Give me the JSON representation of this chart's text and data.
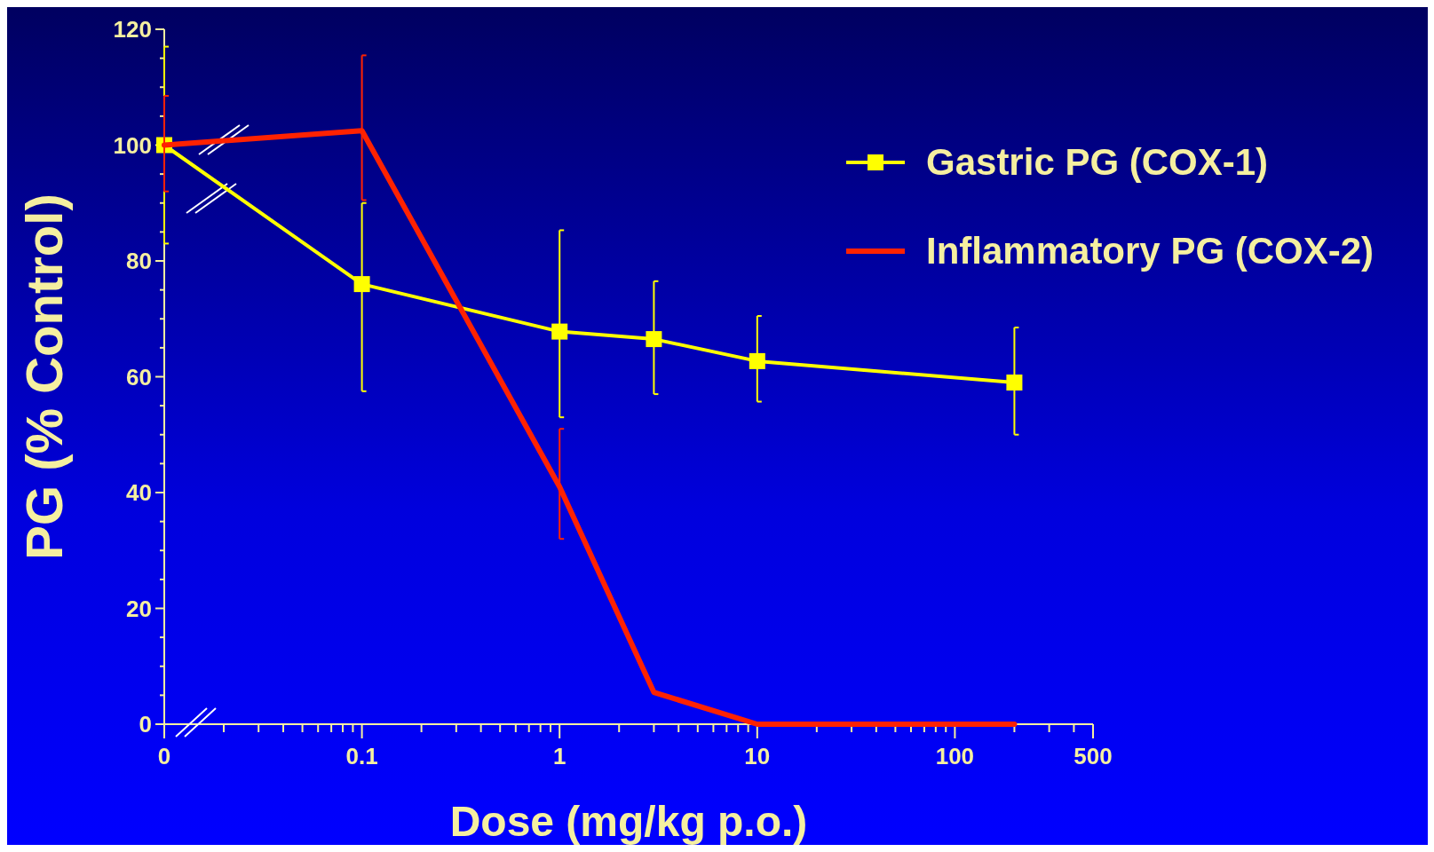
{
  "chart_data": {
    "type": "line",
    "xlabel": "Dose (mg/kg p.o.)",
    "ylabel": "PG (% Control)",
    "log": "x",
    "xlim": [
      0.01,
      500
    ],
    "xticks": [
      {
        "value": 0.01,
        "label": "0"
      },
      0.1,
      1,
      10,
      100,
      500,
      {
        "value": 0.02,
        "label": null
      },
      {
        "value": 0.03,
        "label": null
      },
      {
        "value": 0.04,
        "label": null
      },
      {
        "value": 0.05,
        "label": null
      },
      {
        "value": 0.06,
        "label": null
      },
      {
        "value": 0.07,
        "label": null
      },
      {
        "value": 0.08,
        "label": null
      },
      {
        "value": 0.09,
        "label": null
      },
      {
        "value": 0.2,
        "label": null
      },
      {
        "value": 0.3,
        "label": null
      },
      {
        "value": 0.4,
        "label": null
      },
      {
        "value": 0.5,
        "label": null
      },
      {
        "value": 0.6,
        "label": null
      },
      {
        "value": 0.7,
        "label": null
      },
      {
        "value": 0.8,
        "label": null
      },
      {
        "value": 0.9,
        "label": null
      },
      {
        "value": 2,
        "label": null
      },
      {
        "value": 3,
        "label": null
      },
      {
        "value": 4,
        "label": null
      },
      {
        "value": 5,
        "label": null
      },
      {
        "value": 6,
        "label": null
      },
      {
        "value": 7,
        "label": null
      },
      {
        "value": 8,
        "label": null
      },
      {
        "value": 9,
        "label": null
      },
      {
        "value": 20,
        "label": null
      },
      {
        "value": 30,
        "label": null
      },
      {
        "value": 40,
        "label": null
      },
      {
        "value": 50,
        "label": null
      },
      {
        "value": 60,
        "label": null
      },
      {
        "value": 70,
        "label": null
      },
      {
        "value": 80,
        "label": null
      },
      {
        "value": 90,
        "label": null
      },
      {
        "value": 200,
        "label": null
      },
      {
        "value": 300,
        "label": null
      },
      {
        "value": 400,
        "label": null
      }
    ],
    "ylim": [
      0,
      120
    ],
    "yticks": [
      0,
      20,
      40,
      60,
      80,
      100,
      120,
      {
        "value": 5,
        "label": null
      },
      {
        "value": 10,
        "label": null
      },
      {
        "value": 15,
        "label": null
      },
      {
        "value": 25,
        "label": null
      },
      {
        "value": 30,
        "label": null
      },
      {
        "value": 35,
        "label": null
      },
      {
        "value": 45,
        "label": null
      },
      {
        "value": 50,
        "label": null
      },
      {
        "value": 55,
        "label": null
      },
      {
        "value": 65,
        "label": null
      },
      {
        "value": 70,
        "label": null
      },
      {
        "value": 75,
        "label": null
      },
      {
        "value": 85,
        "label": null
      },
      {
        "value": 90,
        "label": null
      },
      {
        "value": 95,
        "label": null
      },
      {
        "value": 105,
        "label": null
      },
      {
        "value": 110,
        "label": null
      },
      {
        "value": 115,
        "label": null
      }
    ],
    "grid": false,
    "legend": "top right",
    "x": [
      0.01,
      0.1,
      1,
      3,
      10,
      200
    ],
    "series": [
      {
        "name": "Gastric PG (COX-1)",
        "color": "#ffff00",
        "marker": "square",
        "values": [
          100,
          76,
          67.8,
          66.5,
          62.7,
          59
        ],
        "errors": [
          [
            83,
            117
          ],
          [
            57.5,
            90
          ],
          [
            53,
            85.3
          ],
          [
            57,
            76.5
          ],
          [
            55.7,
            70.5
          ],
          [
            50,
            68.5
          ]
        ]
      },
      {
        "name": "Inflammatory PG (COX-2)",
        "color": "#ff2200",
        "marker": "none",
        "values": [
          100,
          102.5,
          41,
          5.5,
          0,
          0
        ],
        "errors": [
          [
            92,
            108.5
          ],
          [
            90.5,
            115.5
          ],
          [
            32,
            51
          ],
          null,
          null,
          null
        ]
      }
    ]
  }
}
